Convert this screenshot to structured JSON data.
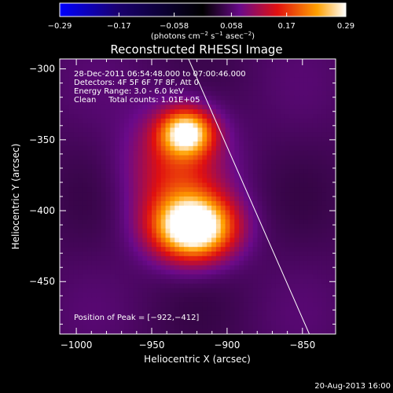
{
  "chart_data": {
    "type": "heatmap",
    "title": "Reconstructed RHESSI Image",
    "xlabel": "Heliocentric X (arcsec)",
    "ylabel": "Heliocentric Y (arcsec)",
    "xlim": [
      -1011,
      -828
    ],
    "ylim": [
      -487,
      -293
    ],
    "x_ticks": [
      -1000,
      -950,
      -900,
      -850
    ],
    "y_ticks": [
      -450,
      -400,
      -350,
      -300
    ],
    "x_tick_labels": [
      "−1000",
      "−950",
      "−900",
      "−850"
    ],
    "y_tick_labels": [
      "−450",
      "−400",
      "−350",
      "−300"
    ],
    "colorbar": {
      "min": -0.29,
      "max": 0.29,
      "ticks": [
        -0.29,
        -0.17,
        -0.058,
        0.058,
        0.17,
        0.29
      ],
      "tick_labels": [
        "−0.29",
        "−0.17",
        "−0.058",
        "0.058",
        "0.17",
        "0.29"
      ],
      "unit_main": "(photons cm",
      "unit_exp1": "−2",
      "unit_mid": " s",
      "unit_exp2": "−1",
      "unit_end": " asec",
      "unit_exp3": "−2",
      "unit_close": ")"
    },
    "sources": [
      {
        "x": -922,
        "y": -412,
        "sx": 18,
        "sy": 15,
        "amp": 0.29
      },
      {
        "x": -927,
        "y": -345,
        "sx": 12,
        "sy": 11,
        "amp": 0.22
      },
      {
        "x": -934,
        "y": -372,
        "sx": 22,
        "sy": 30,
        "amp": 0.1
      }
    ],
    "limb_line": {
      "x1": -926,
      "y1": -292,
      "x2": -845,
      "y2": -488
    },
    "grid": false,
    "colormap": "blue-black-purple-red-yellow-white"
  },
  "annotations": {
    "time": "28-Dec-2011 06:54:48.000 to 07:00:46.000",
    "detectors": "Detectors: 4F 5F 6F 7F 8F, Att 0",
    "energy": "Energy Range: 3.0 - 6.0 keV",
    "clean": "Clean     Total counts: 1.01E+05",
    "peak": "Position of Peak = [−922,−412]"
  },
  "footer": {
    "timestamp": "20-Aug-2013 16:00"
  }
}
